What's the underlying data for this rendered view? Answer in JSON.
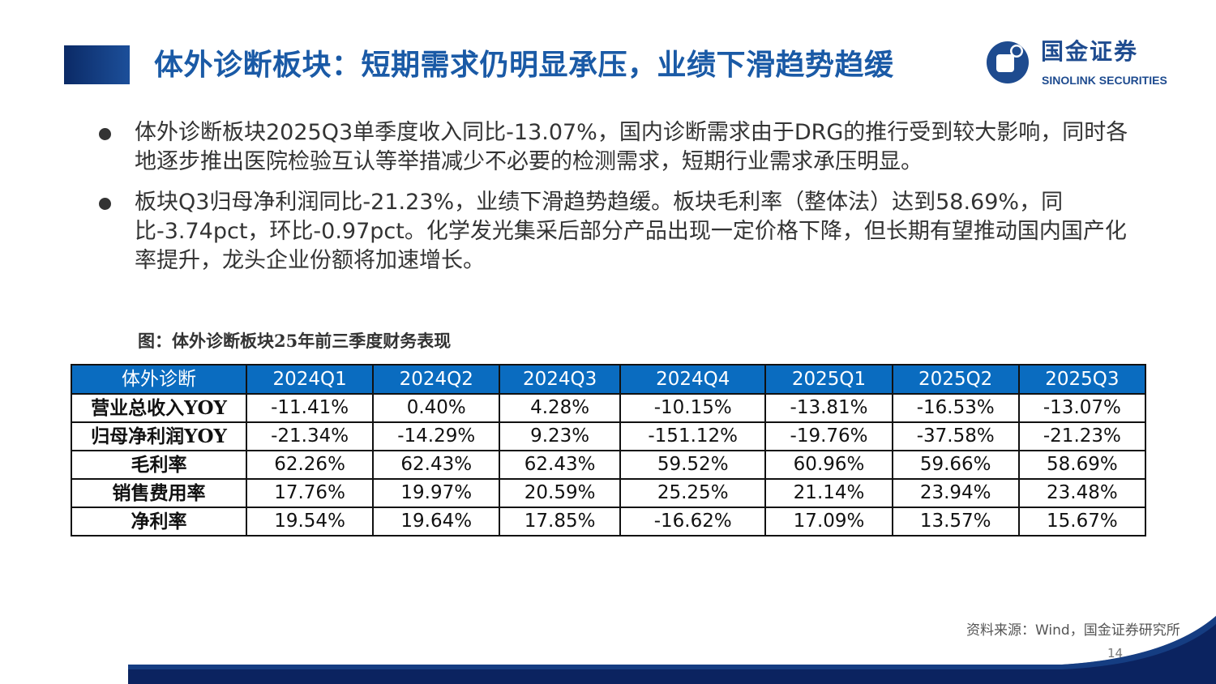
{
  "header": {
    "title": "体外诊断板块：短期需求仍明显承压，业绩下滑趋势趋缓",
    "logo_cn": "国金证券",
    "logo_en": "SINOLINK SECURITIES"
  },
  "bullets": [
    "体外诊断板块2025Q3单季度收入同比-13.07%，国内诊断需求由于DRG的推行受到较大影响，同时各地逐步推出医院检验互认等举措减少不必要的检测需求，短期行业需求承压明显。",
    "板块Q3归母净利润同比-21.23%，业绩下滑趋势趋缓。板块毛利率（整体法）达到58.69%，同比-3.74pct，环比-0.97pct。化学发光集采后部分产品出现一定价格下降，但长期有望推动国内国产化率提升，龙头企业份额将加速增长。"
  ],
  "figure": {
    "caption": "图：体外诊断板块25年前三季度财务表现",
    "headers": [
      "体外诊断",
      "2024Q1",
      "2024Q2",
      "2024Q3",
      "2024Q4",
      "2025Q1",
      "2025Q2",
      "2025Q3"
    ],
    "rows": [
      [
        "营业总收入YOY",
        "-11.41%",
        "0.40%",
        "4.28%",
        "-10.15%",
        "-13.81%",
        "-16.53%",
        "-13.07%"
      ],
      [
        "归母净利润YOY",
        "-21.34%",
        "-14.29%",
        "9.23%",
        "-151.12%",
        "-19.76%",
        "-37.58%",
        "-21.23%"
      ],
      [
        "毛利率",
        "62.26%",
        "62.43%",
        "62.43%",
        "59.52%",
        "60.96%",
        "59.66%",
        "58.69%"
      ],
      [
        "销售费用率",
        "17.76%",
        "19.97%",
        "20.59%",
        "25.25%",
        "21.14%",
        "23.94%",
        "23.48%"
      ],
      [
        "净利率",
        "19.54%",
        "19.64%",
        "17.85%",
        "-16.62%",
        "17.09%",
        "13.57%",
        "15.67%"
      ]
    ],
    "source": "资料来源：Wind，国金证券研究所"
  },
  "page_number": "14",
  "colors": {
    "title": "#1a5aa6",
    "table_header": "#0a6cc0",
    "navy": "#0b2360"
  }
}
